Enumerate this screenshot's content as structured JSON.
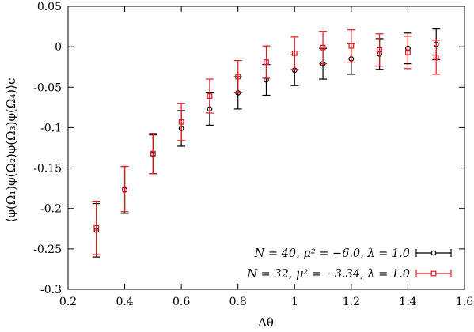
{
  "chart_data": {
    "type": "scatter",
    "xlabel": "Δθ",
    "ylabel": "⟨φ(Ω₁)φ(Ω₂)φ(Ω₃)φ(Ω₄)⟩c",
    "xlim": [
      0.2,
      1.6
    ],
    "ylim": [
      -0.3,
      0.05
    ],
    "xticks": [
      "0.2",
      "0.4",
      "0.6",
      "0.8",
      "1",
      "1.2",
      "1.4",
      "1.6"
    ],
    "yticks": [
      "-0.3",
      "-0.25",
      "-0.2",
      "-0.15",
      "-0.1",
      "-0.05",
      "0",
      "0.05"
    ],
    "xtick_values": [
      0.2,
      0.4,
      0.6,
      0.8,
      1.0,
      1.2,
      1.4,
      1.6
    ],
    "ytick_values": [
      -0.3,
      -0.25,
      -0.2,
      -0.15,
      -0.1,
      -0.05,
      0,
      0.05
    ],
    "grid": false,
    "legend_position": "bottom-right",
    "series": [
      {
        "name": "N = 40, μ² = −6.0, λ = 1.0",
        "color": "#000000",
        "marker": "circle",
        "points": [
          {
            "x": 0.3,
            "y": -0.227,
            "err": 0.033
          },
          {
            "x": 0.4,
            "y": -0.177,
            "err": 0.029
          },
          {
            "x": 0.5,
            "y": -0.133,
            "err": 0.024
          },
          {
            "x": 0.6,
            "y": -0.101,
            "err": 0.022
          },
          {
            "x": 0.7,
            "y": -0.077,
            "err": 0.02
          },
          {
            "x": 0.8,
            "y": -0.057,
            "err": 0.02
          },
          {
            "x": 0.9,
            "y": -0.041,
            "err": 0.019
          },
          {
            "x": 1.0,
            "y": -0.029,
            "err": 0.019
          },
          {
            "x": 1.1,
            "y": -0.021,
            "err": 0.019
          },
          {
            "x": 1.2,
            "y": -0.015,
            "err": 0.019
          },
          {
            "x": 1.3,
            "y": -0.009,
            "err": 0.019
          },
          {
            "x": 1.4,
            "y": -0.002,
            "err": 0.019
          },
          {
            "x": 1.5,
            "y": 0.003,
            "err": 0.019
          }
        ]
      },
      {
        "name": "N = 32, μ² = −3.34, λ = 1.0",
        "color": "#e8141c",
        "marker": "square",
        "points": [
          {
            "x": 0.3,
            "y": -0.224,
            "err": 0.033
          },
          {
            "x": 0.4,
            "y": -0.176,
            "err": 0.028
          },
          {
            "x": 0.5,
            "y": -0.132,
            "err": 0.025
          },
          {
            "x": 0.6,
            "y": -0.093,
            "err": 0.023
          },
          {
            "x": 0.7,
            "y": -0.061,
            "err": 0.021
          },
          {
            "x": 0.8,
            "y": -0.037,
            "err": 0.02
          },
          {
            "x": 0.9,
            "y": -0.019,
            "err": 0.02
          },
          {
            "x": 1.0,
            "y": -0.008,
            "err": 0.02
          },
          {
            "x": 1.1,
            "y": -0.001,
            "err": 0.02
          },
          {
            "x": 1.2,
            "y": 0.001,
            "err": 0.02
          },
          {
            "x": 1.3,
            "y": -0.004,
            "err": 0.02
          },
          {
            "x": 1.4,
            "y": -0.007,
            "err": 0.02
          },
          {
            "x": 1.5,
            "y": -0.013,
            "err": 0.021
          }
        ]
      }
    ]
  }
}
